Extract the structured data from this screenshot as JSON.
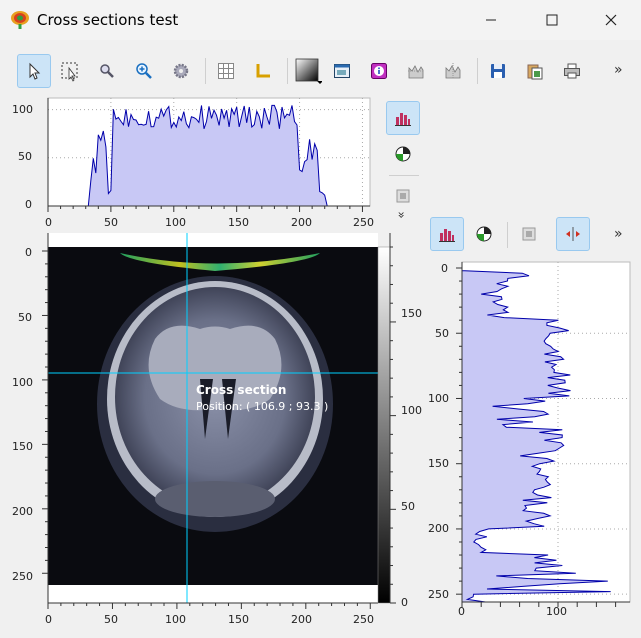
{
  "window": {
    "title": "Cross sections test",
    "minimize_icon": "minimize-icon",
    "maximize_icon": "maximize-icon",
    "close_icon": "close-icon"
  },
  "toolbar": {
    "buttons": [
      {
        "name": "select-tool-button",
        "icon": "arrow-cursor-icon",
        "active": true
      },
      {
        "name": "rect-zoom-button",
        "icon": "rect-zoom-icon",
        "active": false
      },
      {
        "name": "zoom-button",
        "icon": "magnifier-icon",
        "active": false
      },
      {
        "name": "zoom-fit-button",
        "icon": "zoom-in-icon",
        "active": false
      },
      {
        "name": "settings-button",
        "icon": "gear-icon",
        "active": false
      },
      {
        "name": "grid-button",
        "icon": "grid-icon",
        "active": false
      },
      {
        "name": "axes-button",
        "icon": "axes-icon",
        "active": false
      },
      {
        "name": "colormap-button",
        "icon": "colormap-icon",
        "active": false
      },
      {
        "name": "snapshot-button",
        "icon": "snapshot-icon",
        "active": false
      },
      {
        "name": "info-button",
        "icon": "info-icon",
        "active": false
      },
      {
        "name": "xcross-section-button",
        "icon": "xcross-section-icon",
        "active": false
      },
      {
        "name": "ycross-section-button",
        "icon": "ycross-section-icon",
        "active": false
      },
      {
        "name": "save-button",
        "icon": "save-icon",
        "active": false
      },
      {
        "name": "copy-button",
        "icon": "copy-icon",
        "active": false
      },
      {
        "name": "print-button",
        "icon": "print-icon",
        "active": false
      }
    ],
    "more_label": "»"
  },
  "xsection": {
    "y_ticks": [
      "100",
      "50",
      "0"
    ],
    "x_ticks": [
      "0",
      "50",
      "100",
      "150",
      "200",
      "250"
    ]
  },
  "image_plot": {
    "y_ticks": [
      "0",
      "50",
      "100",
      "150",
      "200",
      "250"
    ],
    "x_ticks": [
      "0",
      "50",
      "100",
      "150",
      "200",
      "250"
    ],
    "colorbar_ticks": [
      "150",
      "100",
      "50",
      "0"
    ]
  },
  "ysection": {
    "y_ticks": [
      "0",
      "50",
      "100",
      "150",
      "200",
      "250"
    ],
    "x_ticks": [
      "0",
      "100"
    ],
    "more_label": "»"
  },
  "side_buttons": {
    "more_label": "»"
  },
  "tooltip": {
    "title": "Cross section",
    "position": "Position: ( 106.9 ; 93.3 )"
  },
  "colors": {
    "fill": "#c8c8f5",
    "line": "#0000aa",
    "cursor": "#00d0ff",
    "accent": "#cce4f7"
  }
}
